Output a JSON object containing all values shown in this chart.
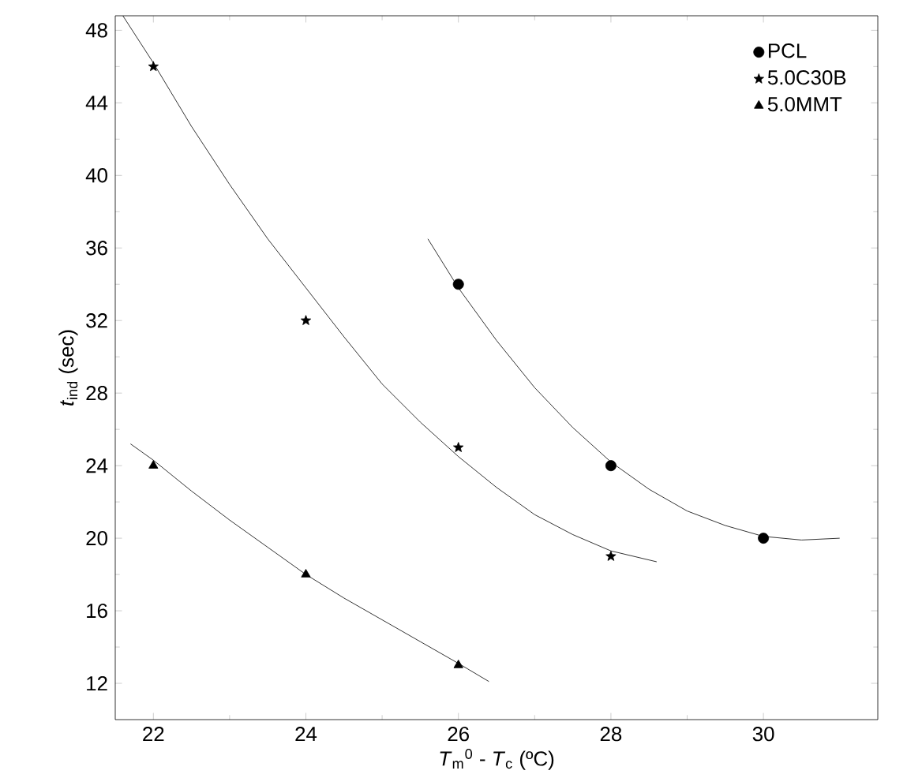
{
  "chart_data": {
    "type": "scatter",
    "xlabel": "*T*$_{m}$$^{0}$ - *T*$_{c}$ (ºC)",
    "ylabel": "*t*$_{ind}$ (sec)",
    "xlim": [
      21.5,
      31.5
    ],
    "ylim": [
      10,
      48.8
    ],
    "xticks": [
      22,
      24,
      26,
      28,
      30
    ],
    "yticks": [
      12,
      16,
      20,
      24,
      28,
      32,
      36,
      40,
      44,
      48
    ],
    "legend": "top right",
    "series": [
      {
        "name": "PCL",
        "color": "#000000",
        "marker": "circle",
        "x": [
          26,
          28,
          30
        ],
        "values": [
          34,
          24,
          20
        ]
      },
      {
        "name": "5.0C30B",
        "color": "#000000",
        "marker": "star",
        "x": [
          22,
          24,
          26,
          28
        ],
        "values": [
          46,
          32,
          25,
          19
        ]
      },
      {
        "name": "5.0MMT",
        "color": "#000000",
        "marker": "triangle",
        "x": [
          22,
          24,
          26
        ],
        "values": [
          24,
          18,
          13
        ]
      },
      {
        "type": "line",
        "color": "#000000",
        "marker": "none",
        "line_style": "solid",
        "x": [
          25.6,
          26,
          26.5,
          27,
          27.5,
          28,
          28.5,
          29,
          29.5,
          30,
          30.5,
          31
        ],
        "values": [
          36.5,
          33.8,
          30.9,
          28.3,
          26.1,
          24.2,
          22.7,
          21.5,
          20.7,
          20.1,
          19.9,
          20.0
        ]
      },
      {
        "type": "line",
        "color": "#000000",
        "marker": "none",
        "line_style": "solid",
        "x": [
          21.6,
          22,
          22.5,
          23,
          23.5,
          24,
          24.5,
          25,
          25.5,
          26,
          26.5,
          27,
          27.5,
          28,
          28.6
        ],
        "values": [
          48.8,
          46.2,
          42.7,
          39.5,
          36.5,
          33.8,
          31.1,
          28.5,
          26.4,
          24.5,
          22.8,
          21.3,
          20.2,
          19.3,
          18.7
        ]
      },
      {
        "type": "line",
        "color": "#000000",
        "marker": "none",
        "line_style": "solid",
        "x": [
          21.7,
          22,
          22.5,
          23,
          23.5,
          24,
          24.5,
          25,
          25.5,
          26,
          26.4
        ],
        "values": [
          25.2,
          24.3,
          22.6,
          21.0,
          19.5,
          18.0,
          16.7,
          15.5,
          14.3,
          13.1,
          12.1
        ]
      }
    ]
  }
}
